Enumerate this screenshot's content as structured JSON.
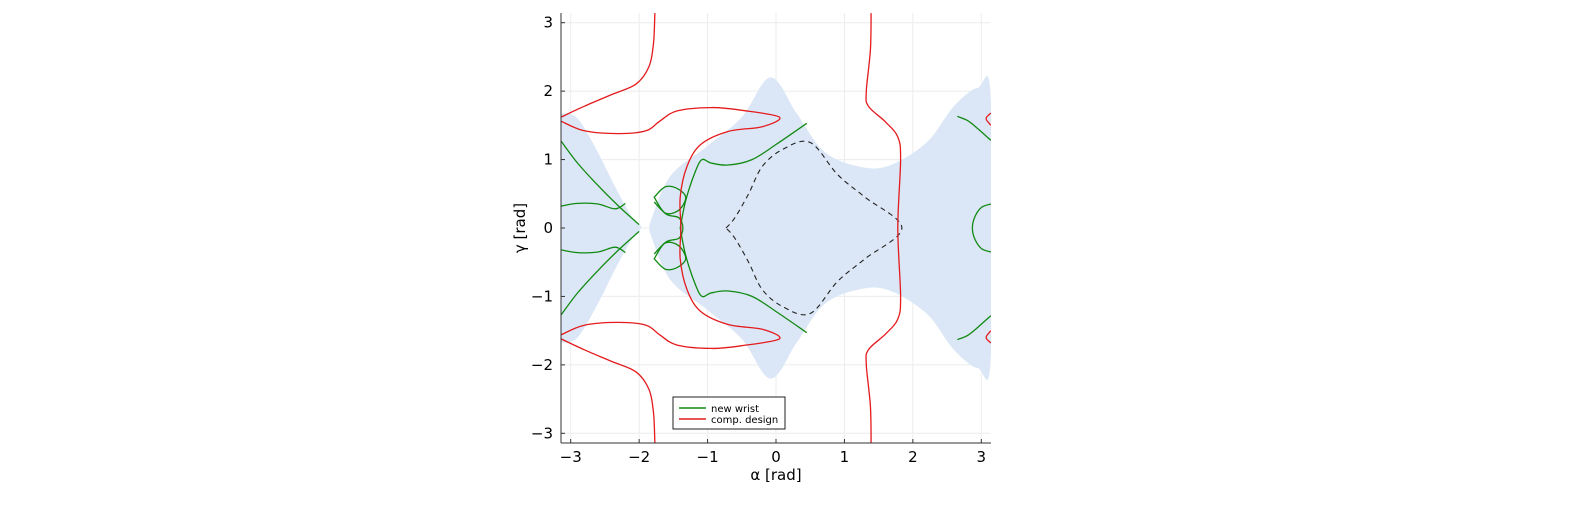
{
  "chart_data": {
    "type": "line",
    "title": "",
    "xlabel": "α [rad]",
    "ylabel": "γ [rad]",
    "xlim": [
      -3.1416,
      3.1416
    ],
    "ylim": [
      -3.1416,
      3.1416
    ],
    "xticks": [
      {
        "value": -3,
        "label": "−3"
      },
      {
        "value": -2,
        "label": "−2"
      },
      {
        "value": -1,
        "label": "−1"
      },
      {
        "value": 0,
        "label": "0"
      },
      {
        "value": 1,
        "label": "1"
      },
      {
        "value": 2,
        "label": "2"
      },
      {
        "value": 3,
        "label": "3"
      }
    ],
    "yticks": [
      {
        "value": -3,
        "label": "−3"
      },
      {
        "value": -2,
        "label": "−2"
      },
      {
        "value": -1,
        "label": "−1"
      },
      {
        "value": 0,
        "label": "0"
      },
      {
        "value": 1,
        "label": "1"
      },
      {
        "value": 2,
        "label": "2"
      },
      {
        "value": 3,
        "label": "3"
      }
    ],
    "grid": true,
    "legend_position": "bottom-center",
    "colors": {
      "region": "#dbe7f6",
      "new_wrist": "#128a12",
      "comp_design": "#e41a1c",
      "boundary": "#222222",
      "grid": "#ececec",
      "axis": "#333333"
    },
    "region": [
      {
        "name": "",
        "polygon": [
          [
            -3.14,
            1.68
          ],
          [
            -2.9,
            1.6
          ],
          [
            -2.6,
            1.1
          ],
          [
            -2.35,
            0.6
          ],
          [
            -2.1,
            0.15
          ],
          [
            -1.97,
            0.01
          ],
          [
            -2.1,
            -0.15
          ],
          [
            -2.35,
            -0.6
          ],
          [
            -2.6,
            -1.1
          ],
          [
            -2.9,
            -1.6
          ],
          [
            -3.14,
            -1.68
          ]
        ]
      },
      {
        "name": "",
        "polygon": [
          [
            -1.85,
            0.05
          ],
          [
            -1.55,
            0.75
          ],
          [
            -1.0,
            1.2
          ],
          [
            -0.5,
            1.62
          ],
          [
            -0.08,
            2.2
          ],
          [
            0.3,
            1.68
          ],
          [
            0.7,
            1.12
          ],
          [
            1.2,
            0.9
          ],
          [
            1.65,
            0.91
          ],
          [
            2.2,
            1.25
          ],
          [
            2.6,
            1.78
          ],
          [
            2.95,
            2.05
          ],
          [
            3.14,
            1.87
          ],
          [
            3.14,
            -1.87
          ],
          [
            2.95,
            -2.05
          ],
          [
            2.6,
            -1.78
          ],
          [
            2.2,
            -1.25
          ],
          [
            1.65,
            -0.91
          ],
          [
            1.2,
            -0.9
          ],
          [
            0.7,
            -1.12
          ],
          [
            0.3,
            -1.68
          ],
          [
            -0.08,
            -2.2
          ],
          [
            -0.5,
            -1.62
          ],
          [
            -1.0,
            -1.2
          ],
          [
            -1.55,
            -0.75
          ],
          [
            -1.85,
            -0.05
          ]
        ]
      }
    ],
    "boundary": {
      "name": "",
      "points": [
        [
          -0.73,
          0
        ],
        [
          -0.6,
          0.15
        ],
        [
          -0.4,
          0.5
        ],
        [
          -0.2,
          0.9
        ],
        [
          0.1,
          1.15
        ],
        [
          0.5,
          1.25
        ],
        [
          0.9,
          0.78
        ],
        [
          1.3,
          0.45
        ],
        [
          1.84,
          0
        ],
        [
          1.3,
          -0.45
        ],
        [
          0.9,
          -0.78
        ],
        [
          0.5,
          -1.25
        ],
        [
          0.1,
          -1.15
        ],
        [
          -0.2,
          -0.9
        ],
        [
          -0.4,
          -0.5
        ],
        [
          -0.6,
          -0.15
        ],
        [
          -0.73,
          0
        ]
      ]
    },
    "series": [
      {
        "name": "new wrist",
        "color": "#128a12",
        "curves": [
          [
            [
              -3.14,
              1.27
            ],
            [
              -2.9,
              0.95
            ],
            [
              -2.6,
              0.62
            ],
            [
              -2.3,
              0.32
            ],
            [
              -2.0,
              0.05
            ]
          ],
          [
            [
              -3.14,
              -1.27
            ],
            [
              -2.9,
              -0.95
            ],
            [
              -2.6,
              -0.62
            ],
            [
              -2.3,
              -0.32
            ],
            [
              -2.0,
              -0.05
            ]
          ],
          [
            [
              -3.14,
              0.32
            ],
            [
              -2.9,
              0.36
            ],
            [
              -2.6,
              0.35
            ],
            [
              -2.35,
              0.28
            ],
            [
              -2.2,
              0.36
            ]
          ],
          [
            [
              -3.14,
              -0.32
            ],
            [
              -2.9,
              -0.36
            ],
            [
              -2.6,
              -0.35
            ],
            [
              -2.35,
              -0.28
            ],
            [
              -2.2,
              -0.36
            ]
          ],
          [
            [
              -1.78,
              0.45
            ],
            [
              -1.62,
              0.6
            ],
            [
              -1.45,
              0.58
            ],
            [
              -1.32,
              0.45
            ],
            [
              -1.42,
              0.26
            ],
            [
              -1.62,
              0.22
            ],
            [
              -1.78,
              0.45
            ]
          ],
          [
            [
              -1.78,
              -0.45
            ],
            [
              -1.62,
              -0.6
            ],
            [
              -1.45,
              -0.58
            ],
            [
              -1.32,
              -0.45
            ],
            [
              -1.42,
              -0.26
            ],
            [
              -1.62,
              -0.22
            ],
            [
              -1.78,
              -0.45
            ]
          ],
          [
            [
              -1.78,
              0.38
            ],
            [
              -1.6,
              0.2
            ],
            [
              -1.42,
              0.15
            ],
            [
              -1.36,
              0.0
            ],
            [
              -1.42,
              -0.15
            ],
            [
              -1.6,
              -0.2
            ],
            [
              -1.78,
              -0.38
            ]
          ],
          [
            [
              -1.4,
              0.0
            ],
            [
              -1.32,
              0.4
            ],
            [
              -1.18,
              0.82
            ],
            [
              -1.08,
              1.0
            ],
            [
              -0.95,
              0.95
            ],
            [
              -0.7,
              0.92
            ],
            [
              -0.35,
              1.0
            ],
            [
              0.0,
              1.22
            ],
            [
              0.45,
              1.53
            ]
          ],
          [
            [
              -1.4,
              0.0
            ],
            [
              -1.32,
              -0.4
            ],
            [
              -1.18,
              -0.82
            ],
            [
              -1.08,
              -1.0
            ],
            [
              -0.95,
              -0.95
            ],
            [
              -0.7,
              -0.92
            ],
            [
              -0.35,
              -1.0
            ],
            [
              0.0,
              -1.22
            ],
            [
              0.45,
              -1.53
            ]
          ],
          [
            [
              3.14,
              0.35
            ],
            [
              3.0,
              0.3
            ],
            [
              2.9,
              0.15
            ],
            [
              2.87,
              0.0
            ],
            [
              2.9,
              -0.15
            ],
            [
              3.0,
              -0.3
            ],
            [
              3.14,
              -0.35
            ]
          ],
          [
            [
              2.65,
              1.63
            ],
            [
              2.8,
              1.57
            ],
            [
              2.95,
              1.45
            ],
            [
              3.14,
              1.28
            ]
          ],
          [
            [
              2.65,
              -1.63
            ],
            [
              2.8,
              -1.57
            ],
            [
              2.95,
              -1.45
            ],
            [
              3.14,
              -1.28
            ]
          ]
        ]
      },
      {
        "name": "comp. design",
        "color": "#e41a1c",
        "curves": [
          [
            [
              -1.77,
              3.14
            ],
            [
              -1.79,
              2.7
            ],
            [
              -1.86,
              2.35
            ],
            [
              -2.05,
              2.1
            ],
            [
              -2.4,
              1.95
            ],
            [
              -2.8,
              1.78
            ],
            [
              -3.14,
              1.62
            ]
          ],
          [
            [
              -1.77,
              -3.14
            ],
            [
              -1.79,
              -2.7
            ],
            [
              -1.86,
              -2.35
            ],
            [
              -2.05,
              -2.1
            ],
            [
              -2.4,
              -1.95
            ],
            [
              -2.8,
              -1.78
            ],
            [
              -3.14,
              -1.62
            ]
          ],
          [
            [
              -3.14,
              1.56
            ],
            [
              -2.8,
              1.42
            ],
            [
              -2.3,
              1.38
            ],
            [
              -1.9,
              1.42
            ],
            [
              -1.7,
              1.56
            ],
            [
              -1.45,
              1.71
            ],
            [
              -0.95,
              1.76
            ],
            [
              -0.5,
              1.72
            ],
            [
              0.05,
              1.62
            ],
            [
              -0.2,
              1.48
            ],
            [
              -0.7,
              1.41
            ],
            [
              -1.1,
              1.22
            ],
            [
              -1.3,
              0.9
            ],
            [
              -1.4,
              0.45
            ],
            [
              -1.39,
              0.0
            ],
            [
              -1.4,
              -0.45
            ],
            [
              -1.3,
              -0.9
            ],
            [
              -1.1,
              -1.22
            ],
            [
              -0.7,
              -1.41
            ],
            [
              -0.2,
              -1.48
            ],
            [
              0.05,
              -1.62
            ],
            [
              -0.5,
              -1.72
            ],
            [
              -0.95,
              -1.76
            ],
            [
              -1.45,
              -1.71
            ],
            [
              -1.7,
              -1.56
            ],
            [
              -1.9,
              -1.42
            ],
            [
              -2.3,
              -1.38
            ],
            [
              -2.8,
              -1.42
            ],
            [
              -3.14,
              -1.56
            ]
          ],
          [
            [
              1.39,
              3.14
            ],
            [
              1.38,
              2.6
            ],
            [
              1.32,
              2.0
            ],
            [
              1.35,
              1.78
            ],
            [
              1.6,
              1.55
            ],
            [
              1.78,
              1.33
            ],
            [
              1.82,
              1.0
            ],
            [
              1.78,
              0.0
            ],
            [
              1.82,
              -1.0
            ],
            [
              1.78,
              -1.33
            ],
            [
              1.6,
              -1.55
            ],
            [
              1.35,
              -1.78
            ],
            [
              1.32,
              -2.0
            ],
            [
              1.38,
              -2.6
            ],
            [
              1.39,
              -3.14
            ]
          ],
          [
            [
              3.14,
              1.68
            ],
            [
              3.07,
              1.6
            ],
            [
              3.14,
              1.5
            ]
          ],
          [
            [
              3.14,
              -1.68
            ],
            [
              3.07,
              -1.6
            ],
            [
              3.14,
              -1.5
            ]
          ]
        ]
      }
    ]
  }
}
